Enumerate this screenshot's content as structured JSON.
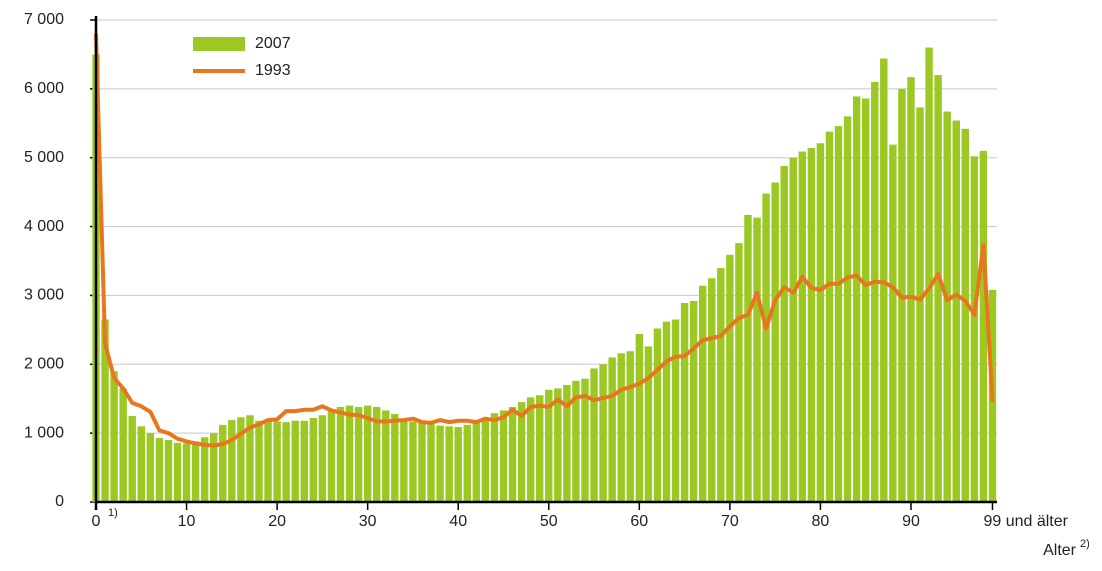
{
  "chart_data": {
    "type": "bar",
    "x": [
      0,
      1,
      2,
      3,
      4,
      5,
      6,
      7,
      8,
      9,
      10,
      11,
      12,
      13,
      14,
      15,
      16,
      17,
      18,
      19,
      20,
      21,
      22,
      23,
      24,
      25,
      26,
      27,
      28,
      29,
      30,
      31,
      32,
      33,
      34,
      35,
      36,
      37,
      38,
      39,
      40,
      41,
      42,
      43,
      44,
      45,
      46,
      47,
      48,
      49,
      50,
      51,
      52,
      53,
      54,
      55,
      56,
      57,
      58,
      59,
      60,
      61,
      62,
      63,
      64,
      65,
      66,
      67,
      68,
      69,
      70,
      71,
      72,
      73,
      74,
      75,
      76,
      77,
      78,
      79,
      80,
      81,
      82,
      83,
      84,
      85,
      86,
      87,
      88,
      89,
      90,
      91,
      92,
      93,
      94,
      95,
      96,
      97,
      98,
      99
    ],
    "series": [
      {
        "name": "2007",
        "type": "bar",
        "color": "#9cc824",
        "values": [
          6500,
          2650,
          1900,
          1650,
          1250,
          1100,
          1000,
          930,
          900,
          860,
          850,
          880,
          940,
          1000,
          1120,
          1190,
          1230,
          1260,
          1180,
          1170,
          1170,
          1160,
          1180,
          1180,
          1220,
          1260,
          1320,
          1380,
          1400,
          1380,
          1400,
          1380,
          1330,
          1280,
          1200,
          1170,
          1150,
          1130,
          1110,
          1100,
          1090,
          1120,
          1150,
          1220,
          1290,
          1330,
          1380,
          1450,
          1520,
          1550,
          1630,
          1650,
          1700,
          1760,
          1790,
          1940,
          2000,
          2100,
          2160,
          2190,
          2440,
          2260,
          2520,
          2620,
          2650,
          2890,
          2920,
          3140,
          3250,
          3400,
          3590,
          3760,
          4170,
          4130,
          4480,
          4640,
          4880,
          5000,
          5090,
          5140,
          5210,
          5380,
          5460,
          5600,
          5890,
          5860,
          6100,
          6440,
          5190,
          6000,
          6170,
          5730,
          6600,
          6200,
          5670,
          5540,
          5420,
          5020,
          5100,
          3080
        ]
      },
      {
        "name": "1993",
        "type": "line",
        "color": "#e8761e",
        "values": [
          6780,
          2300,
          1800,
          1650,
          1440,
          1390,
          1310,
          1040,
          1000,
          920,
          880,
          850,
          830,
          820,
          840,
          900,
          990,
          1080,
          1130,
          1190,
          1200,
          1320,
          1320,
          1340,
          1340,
          1390,
          1330,
          1300,
          1270,
          1260,
          1220,
          1170,
          1170,
          1180,
          1190,
          1210,
          1160,
          1150,
          1190,
          1160,
          1180,
          1180,
          1160,
          1210,
          1190,
          1230,
          1340,
          1250,
          1380,
          1400,
          1380,
          1490,
          1390,
          1520,
          1540,
          1480,
          1510,
          1540,
          1630,
          1670,
          1720,
          1800,
          1920,
          2040,
          2110,
          2120,
          2230,
          2350,
          2380,
          2410,
          2550,
          2670,
          2720,
          3040,
          2520,
          2930,
          3120,
          3040,
          3270,
          3110,
          3080,
          3170,
          3170,
          3260,
          3290,
          3150,
          3200,
          3190,
          3120,
          2970,
          2980,
          2940,
          3100,
          3310,
          2930,
          3010,
          2920,
          2720,
          3730,
          1480
        ]
      }
    ],
    "xlim": [
      0,
      99.5
    ],
    "xticks": [
      0,
      10,
      20,
      30,
      40,
      50,
      60,
      70,
      80,
      90,
      {
        "value": 99,
        "label": "99 und älter"
      }
    ],
    "ylim": [
      0,
      7000
    ],
    "yticks": [
      0,
      {
        "value": 1000,
        "label": "1 000"
      },
      {
        "value": 2000,
        "label": "2 000"
      },
      {
        "value": 3000,
        "label": "3 000"
      },
      {
        "value": 4000,
        "label": "4 000"
      },
      {
        "value": 5000,
        "label": "5 000"
      },
      {
        "value": 6000,
        "label": "6 000"
      },
      {
        "value": 7000,
        "label": "7 000"
      }
    ],
    "grid": true,
    "legend": "top-left",
    "x_label": "Alter",
    "x_label_note": "2)",
    "zero_note": "1)"
  }
}
